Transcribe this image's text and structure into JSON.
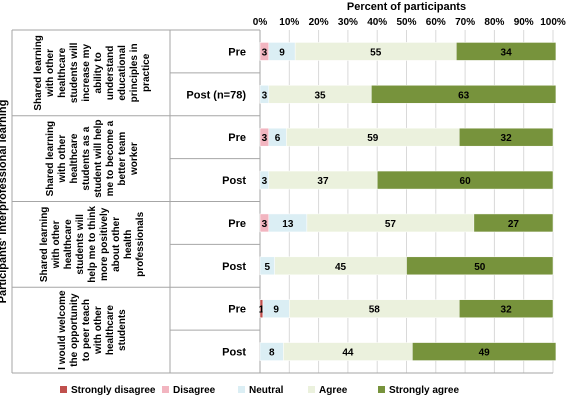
{
  "chart_data": {
    "type": "bar",
    "orientation": "horizontal",
    "stacked": "percent",
    "title": "Percent of participants",
    "y_axis_title": "Participants' interprofessional learning",
    "xlim": [
      0,
      100
    ],
    "x_ticks": [
      "0%",
      "10%",
      "20%",
      "30%",
      "40%",
      "50%",
      "60%",
      "70%",
      "80%",
      "90%",
      "100%"
    ],
    "legend_position": "bottom",
    "series": [
      {
        "name": "Strongly disagree",
        "color": "#c0504d"
      },
      {
        "name": "Disagree",
        "color": "#f2b5c0"
      },
      {
        "name": "Neutral",
        "color": "#dbeef4"
      },
      {
        "name": "Agree",
        "color": "#ebf1dd"
      },
      {
        "name": "Strongly agree",
        "color": "#77933c"
      }
    ],
    "groups": [
      {
        "statement": "Shared learning with other healthcare students will increase my ability to understand educational principles in practice",
        "rows": [
          {
            "label": "Pre",
            "values": [
              0,
              3,
              9,
              55,
              34
            ],
            "labels": [
              "",
              "3",
              "9",
              "55",
              "34"
            ]
          },
          {
            "label": "Post (n=78)",
            "values": [
              0,
              0,
              3,
              35,
              63
            ],
            "labels": [
              "",
              "",
              "3",
              "35",
              "63"
            ]
          }
        ]
      },
      {
        "statement": "Shared learning with other healthcare students as a student will help me to become a better team worker",
        "rows": [
          {
            "label": "Pre",
            "values": [
              0,
              3,
              6,
              59,
              32
            ],
            "labels": [
              "",
              "3",
              "6",
              "59",
              "32"
            ]
          },
          {
            "label": "Post",
            "values": [
              0,
              0,
              3,
              37,
              60
            ],
            "labels": [
              "",
              "",
              "3",
              "37",
              "60"
            ]
          }
        ]
      },
      {
        "statement": "Shared learning with other healthcare students will help me to think more positively about other health professionals",
        "rows": [
          {
            "label": "Pre",
            "values": [
              0,
              3,
              13,
              57,
              27
            ],
            "labels": [
              "",
              "3",
              "13",
              "57",
              "27"
            ]
          },
          {
            "label": "Post",
            "values": [
              0,
              0,
              5,
              45,
              50
            ],
            "labels": [
              "",
              "",
              "5",
              "45",
              "50"
            ]
          }
        ]
      },
      {
        "statement": "I would welcome the opportunity to peer teach with other healthcare students",
        "rows": [
          {
            "label": "Pre",
            "values": [
              1,
              0,
              9,
              58,
              32
            ],
            "labels": [
              "1",
              "",
              "9",
              "58",
              "32"
            ]
          },
          {
            "label": "Post",
            "values": [
              0,
              0,
              8,
              44,
              49
            ],
            "labels": [
              "",
              "",
              "8",
              "44",
              "49"
            ]
          }
        ]
      }
    ]
  }
}
